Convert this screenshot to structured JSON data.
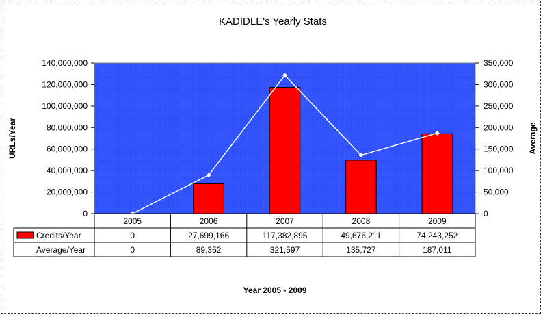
{
  "chart_data": {
    "type": "bar",
    "title": "KADIDLE's Yearly Stats",
    "xlabel": "Year 2005 - 2009",
    "ylabel": "URLs/Year",
    "y2label": "Average",
    "categories": [
      "2005",
      "2006",
      "2007",
      "2008",
      "2009"
    ],
    "ylim": [
      0,
      140000000
    ],
    "y2lim": [
      0,
      350000
    ],
    "yticks": [
      "0",
      "20,000,000",
      "40,000,000",
      "60,000,000",
      "80,000,000",
      "100,000,000",
      "120,000,000",
      "140,000,000"
    ],
    "y2ticks": [
      "0",
      "50,000",
      "100,000",
      "150,000",
      "200,000",
      "250,000",
      "300,000",
      "350,000"
    ],
    "series": [
      {
        "name": "Credits/Year",
        "type": "bar",
        "axis": "left",
        "color": "#ff0000",
        "values": [
          0,
          27699166,
          117382895,
          49676211,
          74243252
        ],
        "labels": [
          "0",
          "27,699,166",
          "117,382,895",
          "49,676,211",
          "74,243,252"
        ]
      },
      {
        "name": "Average/Year",
        "type": "line",
        "axis": "right",
        "color": "#ffffff",
        "values": [
          0,
          89352,
          321597,
          135727,
          187011
        ],
        "labels": [
          "0",
          "89,352",
          "321,597",
          "135,727",
          "187,011"
        ]
      }
    ],
    "plot_background": "#3355ff",
    "grid": false,
    "legend": "data-table"
  }
}
